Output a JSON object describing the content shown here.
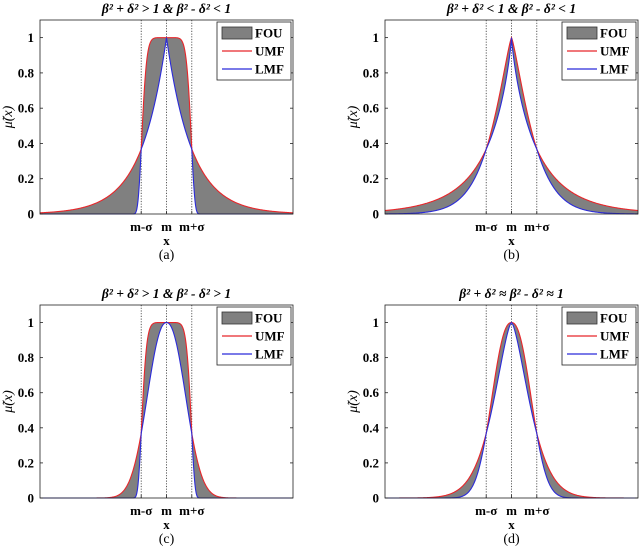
{
  "chart_data": [
    {
      "type": "line",
      "panel_label": "(a)",
      "title": "β² + δ² > 1 &  β² - δ² < 1",
      "xlabel": "x",
      "ylabel": "μ̃(x)",
      "xlim_sigma_units": [
        -5,
        5
      ],
      "ylim": [
        0,
        1.1
      ],
      "yticks": [
        "0",
        "0.2",
        "0.4",
        "0.6",
        "0.8",
        "1"
      ],
      "xticks": [
        "m-σ",
        "m",
        "m+σ"
      ],
      "xtick_values_sigma_units": [
        -1,
        0,
        1
      ],
      "model": "exp(-|x|^p), UMF = max over p, LMF = min over p",
      "shape_exponents": [
        1,
        8
      ],
      "series": [
        {
          "name": "FOU",
          "color": "#808080"
        },
        {
          "name": "UMF",
          "color": "#e8262a"
        },
        {
          "name": "LMF",
          "color": "#2b2bd9"
        }
      ],
      "legend": "top-right"
    },
    {
      "type": "line",
      "panel_label": "(b)",
      "title": "β² + δ² < 1 &  β² - δ² < 1",
      "xlabel": "x",
      "ylabel": "μ̃(x)",
      "xlim_sigma_units": [
        -5,
        5
      ],
      "ylim": [
        0,
        1.1
      ],
      "yticks": [
        "0",
        "0.2",
        "0.4",
        "0.6",
        "0.8",
        "1"
      ],
      "xticks": [
        "m-σ",
        "m",
        "m+σ"
      ],
      "xtick_values_sigma_units": [
        -1,
        0,
        1
      ],
      "model": "exp(-|x|^p), UMF = max over p, LMF = min over p",
      "shape_exponents": [
        0.85,
        1.25
      ],
      "series": [
        {
          "name": "FOU",
          "color": "#808080"
        },
        {
          "name": "UMF",
          "color": "#e8262a"
        },
        {
          "name": "LMF",
          "color": "#2b2bd9"
        }
      ],
      "legend": "top-right"
    },
    {
      "type": "line",
      "panel_label": "(c)",
      "title": "β² + δ² > 1 &  β² - δ² > 1",
      "xlabel": "x",
      "ylabel": "μ̃(x)",
      "xlim_sigma_units": [
        -5,
        5
      ],
      "ylim": [
        0,
        1.1
      ],
      "yticks": [
        "0",
        "0.2",
        "0.4",
        "0.6",
        "0.8",
        "1"
      ],
      "xticks": [
        "m-σ",
        "m",
        "m+σ"
      ],
      "xtick_values_sigma_units": [
        -1,
        0,
        1
      ],
      "model": "exp(-|x|^p), UMF = max over p, LMF = min over p",
      "shape_exponents": [
        2.2,
        8
      ],
      "series": [
        {
          "name": "FOU",
          "color": "#808080"
        },
        {
          "name": "UMF",
          "color": "#e8262a"
        },
        {
          "name": "LMF",
          "color": "#2b2bd9"
        }
      ],
      "legend": "top-right"
    },
    {
      "type": "line",
      "panel_label": "(d)",
      "title": "β² + δ² ≈  β² - δ² ≈ 1",
      "xlabel": "x",
      "ylabel": "μ̃(x)",
      "xlim_sigma_units": [
        -5,
        5
      ],
      "ylim": [
        0,
        1.1
      ],
      "yticks": [
        "0",
        "0.2",
        "0.4",
        "0.6",
        "0.8",
        "1"
      ],
      "xticks": [
        "m-σ",
        "m",
        "m+σ"
      ],
      "xtick_values_sigma_units": [
        -1,
        0,
        1
      ],
      "model": "exp(-|x|^p), UMF = max over p, LMF = min over p",
      "shape_exponents": [
        1.5,
        2.3
      ],
      "series": [
        {
          "name": "FOU",
          "color": "#808080"
        },
        {
          "name": "UMF",
          "color": "#e8262a"
        },
        {
          "name": "LMF",
          "color": "#2b2bd9"
        }
      ],
      "legend": "top-right"
    }
  ]
}
